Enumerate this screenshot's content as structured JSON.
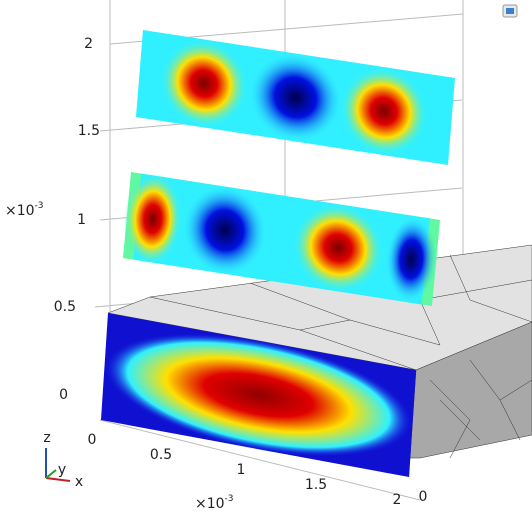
{
  "z_axis": {
    "ticks": [
      "0",
      "0.5",
      "1",
      "1.5",
      "2"
    ],
    "exponent_base": "×10",
    "exponent_power": "-3"
  },
  "x_axis": {
    "ticks": [
      "0",
      "0.5",
      "1",
      "1.5",
      "2"
    ],
    "exponent_base": "×10",
    "exponent_power": "-3"
  },
  "y_axis": {
    "ticks": [
      "0"
    ]
  },
  "triad": {
    "z": "z",
    "y": "y",
    "x": "x"
  }
}
